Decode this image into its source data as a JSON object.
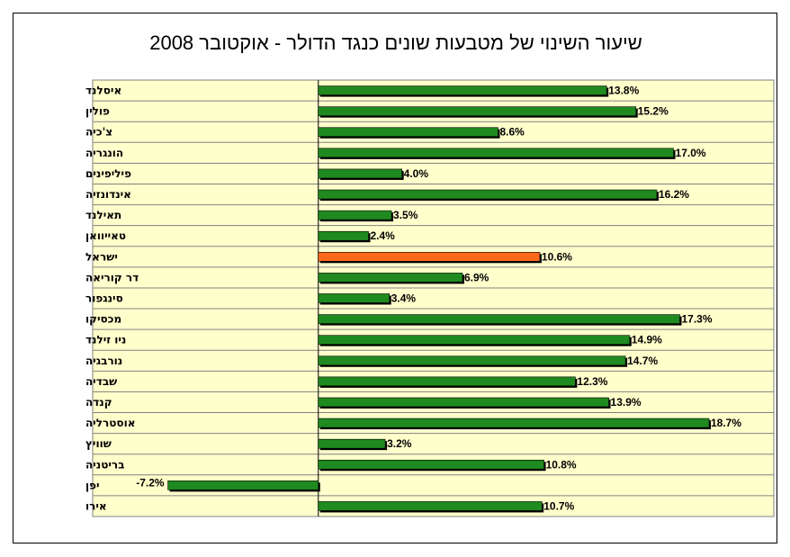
{
  "chart_data": {
    "type": "bar",
    "orientation": "horizontal",
    "title": "שיעור השינוי של מטבעות שונים כנגד הדולר - אוקטובר 2008",
    "categories": [
      "איסלנד",
      "פולין",
      "צ'כיה",
      "הונגריה",
      "פיליפינים",
      "אינדונזיה",
      "תאילנד",
      "טאייוואן",
      "ישראל",
      "דר קוריאה",
      "סינגפור",
      "מכסיקו",
      "ניו זילנד",
      "נורבגיה",
      "שבדיה",
      "קנדה",
      "אוסטרליה",
      "שוויץ",
      "בריטניה",
      "יפן",
      "אירו"
    ],
    "values": [
      13.8,
      15.2,
      8.6,
      17.0,
      4.0,
      16.2,
      3.5,
      2.4,
      10.6,
      6.9,
      3.4,
      17.3,
      14.9,
      14.7,
      12.3,
      13.9,
      18.7,
      3.2,
      10.8,
      -7.2,
      10.7
    ],
    "value_labels": [
      "13.8%",
      "15.2%",
      "8.6%",
      "17.0%",
      "4.0%",
      "16.2%",
      "3.5%",
      "2.4%",
      "10.6%",
      "6.9%",
      "3.4%",
      "17.3%",
      "14.9%",
      "14.7%",
      "12.3%",
      "13.9%",
      "18.7%",
      "3.2%",
      "10.8%",
      "-7.2%",
      "10.7%"
    ],
    "highlight_category": "ישראל",
    "xlim": [
      -10.8,
      21.8
    ],
    "grid": "horizontal row bands",
    "legend": "none",
    "colors": {
      "bar": "#1f8a1f",
      "highlight_bar": "#ff6a1a",
      "bar_shadow": "#000000",
      "plot_bg": "#ffffcc",
      "grid_line": "#808080",
      "axis_line": "#000000"
    }
  }
}
